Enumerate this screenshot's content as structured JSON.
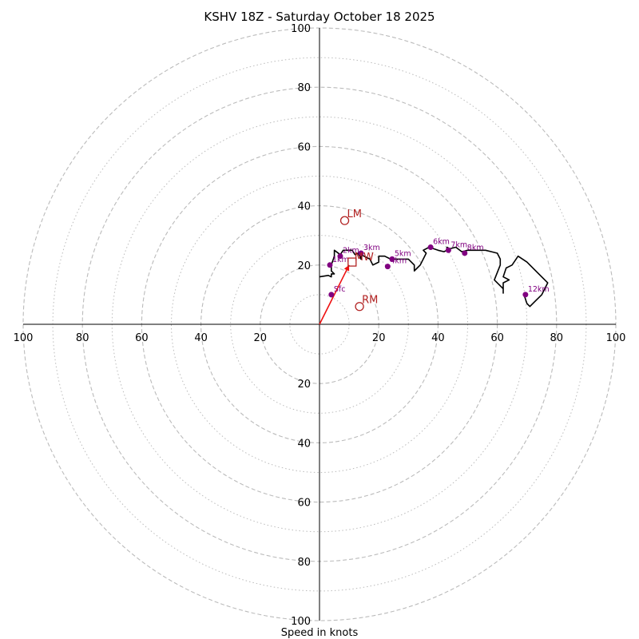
{
  "chart_data": {
    "type": "hodograph",
    "title": "KSHV 18Z - Saturday October 18 2025",
    "xlabel": "Speed in knots",
    "xlim": [
      -100,
      100
    ],
    "ylim": [
      -100,
      100
    ],
    "tick_labels": {
      "top": "100",
      "bottom": "100",
      "left": "100",
      "right": "100",
      "x": [
        {
          "value": -100,
          "label": "100"
        },
        {
          "value": -80,
          "label": "80"
        },
        {
          "value": -60,
          "label": "60"
        },
        {
          "value": -40,
          "label": "40"
        },
        {
          "value": -20,
          "label": "20"
        },
        {
          "value": 20,
          "label": "20"
        },
        {
          "value": 40,
          "label": "40"
        },
        {
          "value": 60,
          "label": "60"
        },
        {
          "value": 80,
          "label": "80"
        },
        {
          "value": 100,
          "label": "100"
        }
      ],
      "y": [
        {
          "value": 80,
          "label": "80"
        },
        {
          "value": 60,
          "label": "60"
        },
        {
          "value": 40,
          "label": "40"
        },
        {
          "value": 20,
          "label": "20"
        },
        {
          "value": -20,
          "label": "20"
        },
        {
          "value": -40,
          "label": "40"
        },
        {
          "value": -60,
          "label": "60"
        },
        {
          "value": -80,
          "label": "80"
        }
      ]
    },
    "rings_major": [
      20,
      40,
      60,
      80,
      100
    ],
    "rings_minor": [
      10,
      30,
      50,
      70,
      90
    ],
    "trace": [
      [
        0,
        16
      ],
      [
        3,
        16.5
      ],
      [
        4,
        16
      ],
      [
        4,
        17
      ],
      [
        5,
        17
      ],
      [
        4,
        18
      ],
      [
        4,
        20
      ],
      [
        5,
        23
      ],
      [
        5,
        25
      ],
      [
        7,
        23.5
      ],
      [
        8,
        25
      ],
      [
        11,
        25
      ],
      [
        12,
        23.5
      ],
      [
        13,
        24
      ],
      [
        14,
        22
      ],
      [
        14,
        23.5
      ],
      [
        17,
        22
      ],
      [
        18,
        20
      ],
      [
        20,
        21
      ],
      [
        20,
        23
      ],
      [
        22,
        23
      ],
      [
        24,
        22
      ],
      [
        25,
        22
      ],
      [
        30,
        22
      ],
      [
        32,
        20
      ],
      [
        32,
        18
      ],
      [
        33,
        19
      ],
      [
        34,
        20
      ],
      [
        36,
        24
      ],
      [
        35,
        25
      ],
      [
        37,
        26
      ],
      [
        40,
        25
      ],
      [
        42,
        24.5
      ],
      [
        43,
        25
      ],
      [
        43,
        26
      ],
      [
        44,
        25.5
      ],
      [
        46,
        26
      ],
      [
        48,
        24.5
      ],
      [
        50,
        25
      ],
      [
        56,
        25
      ],
      [
        58,
        24.5
      ],
      [
        60,
        24
      ],
      [
        61,
        22
      ],
      [
        61,
        20
      ],
      [
        59,
        15
      ],
      [
        61,
        13
      ],
      [
        62,
        12
      ],
      [
        62,
        10.5
      ],
      [
        62,
        14
      ],
      [
        64,
        15
      ],
      [
        62,
        16
      ],
      [
        63,
        19
      ],
      [
        65,
        20
      ],
      [
        67,
        23
      ],
      [
        70,
        21
      ],
      [
        73,
        18
      ],
      [
        77,
        14
      ],
      [
        75,
        10
      ],
      [
        73,
        8
      ],
      [
        71,
        6
      ],
      [
        70,
        7
      ],
      [
        69,
        10
      ]
    ],
    "height_markers": [
      {
        "label": "Sfc",
        "u": 4,
        "v": 10
      },
      {
        "label": "1km",
        "u": 3.5,
        "v": 20
      },
      {
        "label": "2km",
        "u": 7,
        "v": 23
      },
      {
        "label": "3km",
        "u": 14,
        "v": 24
      },
      {
        "label": "4km",
        "u": 23,
        "v": 19.5
      },
      {
        "label": "5km",
        "u": 24.5,
        "v": 22
      },
      {
        "label": "6km",
        "u": 37.5,
        "v": 26
      },
      {
        "label": "7km",
        "u": 43.5,
        "v": 25
      },
      {
        "label": "8km",
        "u": 49,
        "v": 24
      },
      {
        "label": "12km",
        "u": 69.5,
        "v": 10
      }
    ],
    "storm_motions": [
      {
        "label": "LM",
        "u": 8.5,
        "v": 35
      },
      {
        "label": "RM",
        "u": 13.5,
        "v": 6
      }
    ],
    "mean_wind": {
      "label": "MW",
      "u": 11,
      "v": 21
    },
    "mean_wind_vector": {
      "from": [
        0,
        0
      ],
      "to": [
        10,
        20
      ]
    },
    "colors": {
      "trace": "#000000",
      "height_markers": "#800080",
      "storm_motion": "#b22222",
      "vector": "#ee1111",
      "rings": "#bbbbbb",
      "axes": "#000000"
    }
  }
}
